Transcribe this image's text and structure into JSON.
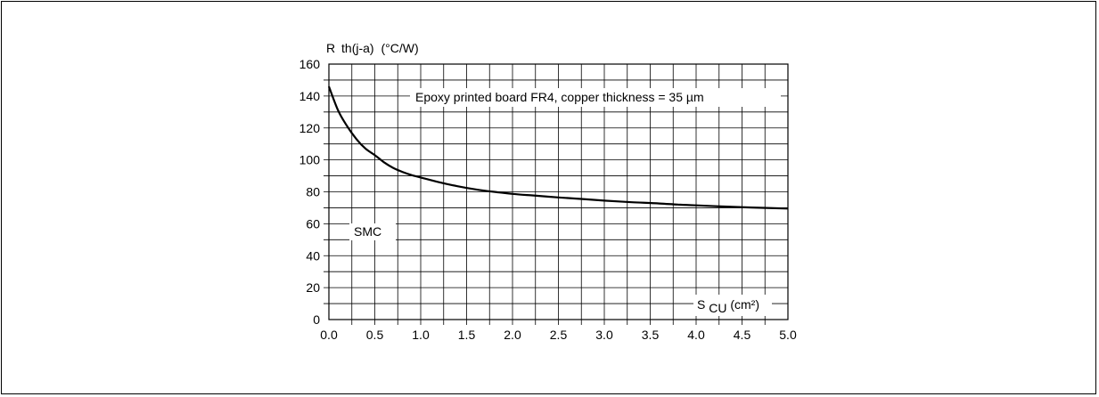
{
  "chart_data": {
    "type": "line",
    "ylabel": {
      "main": "R",
      "sub": "th(j-a)",
      "unit": "(°C/W)"
    },
    "xlabel": {
      "main": "S",
      "sub": "CU",
      "unit": "(cm²)"
    },
    "xlim": [
      0,
      5
    ],
    "ylim": [
      0,
      160
    ],
    "x_ticks": [
      "0.0",
      "0.5",
      "1.0",
      "1.5",
      "2.0",
      "2.5",
      "3.0",
      "3.5",
      "4.0",
      "4.5",
      "5.0"
    ],
    "y_ticks": [
      "0",
      "20",
      "40",
      "60",
      "80",
      "100",
      "120",
      "140",
      "160"
    ],
    "grid": true,
    "annotations": {
      "board": "Epoxy printed board FR4, copper thickness = 35 µm",
      "package": "SMC"
    },
    "series": [
      {
        "x": [
          0.0,
          0.1,
          0.2,
          0.3,
          0.4,
          0.5,
          0.6,
          0.7,
          0.8,
          0.9,
          1.0,
          1.2,
          1.4,
          1.6,
          1.8,
          2.0,
          2.2,
          2.5,
          2.8,
          3.0,
          3.3,
          3.6,
          3.8,
          4.0,
          4.3,
          4.6,
          5.0
        ],
        "y": [
          146,
          131,
          121,
          113,
          107,
          103,
          98.5,
          95,
          92.5,
          90.5,
          89,
          86,
          83.5,
          81.5,
          80,
          78.7,
          77.8,
          76.5,
          75.3,
          74.5,
          73.5,
          72.7,
          72,
          71.5,
          70.8,
          70.2,
          69.5
        ]
      }
    ]
  }
}
